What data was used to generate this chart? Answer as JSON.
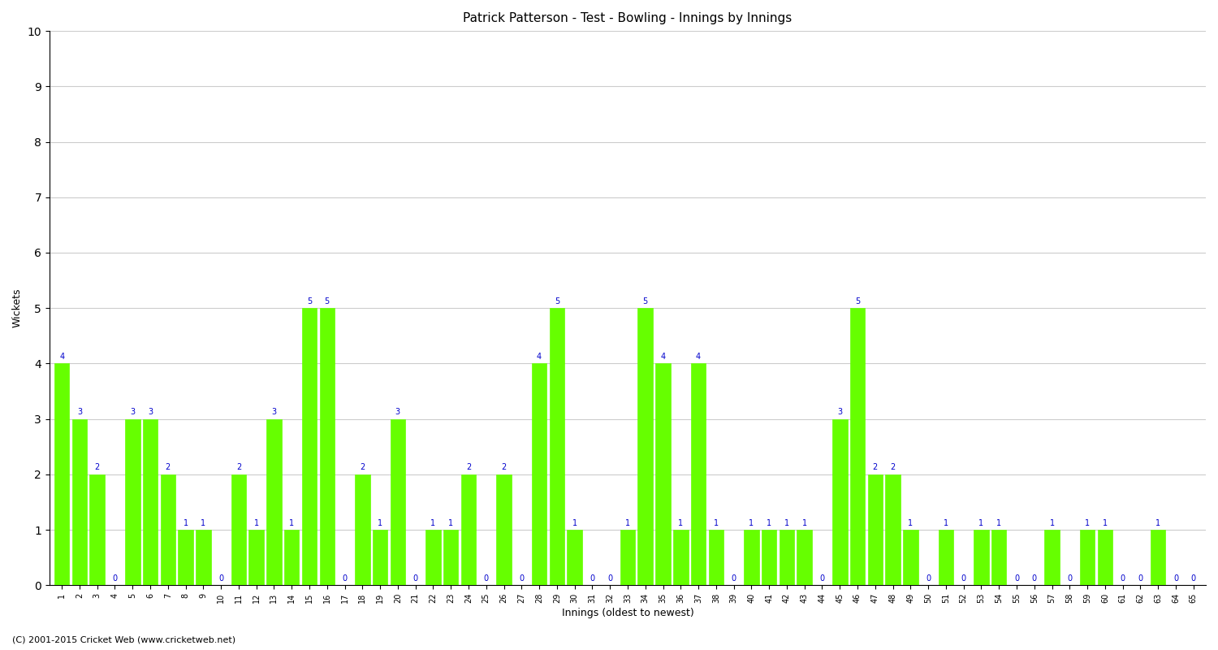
{
  "title": "Patrick Patterson - Test - Bowling - Innings by Innings",
  "xlabel": "Innings (oldest to newest)",
  "ylabel": "Wickets",
  "bar_color": "#66ff00",
  "bar_edge_color": "#66ff00",
  "label_color": "#0000cc",
  "background_color": "#ffffff",
  "grid_color": "#cccccc",
  "ylim": [
    0,
    10
  ],
  "yticks": [
    0,
    1,
    2,
    3,
    4,
    5,
    6,
    7,
    8,
    9,
    10
  ],
  "wickets": [
    4,
    3,
    2,
    0,
    3,
    3,
    2,
    1,
    1,
    0,
    2,
    1,
    3,
    1,
    5,
    5,
    0,
    2,
    1,
    3,
    0,
    1,
    1,
    2,
    0,
    2,
    0,
    4,
    5,
    1,
    0,
    0,
    1,
    5,
    4,
    1,
    4,
    1,
    0,
    1,
    1,
    1,
    1,
    0,
    3,
    5,
    2,
    2,
    1,
    0,
    1,
    0,
    1,
    1,
    0,
    0,
    1,
    0,
    1,
    1,
    0,
    0,
    1,
    0,
    0
  ],
  "x_labels": [
    "1",
    "2",
    "3",
    "4",
    "5",
    "6",
    "7",
    "8",
    "9",
    "10",
    "11",
    "12",
    "13",
    "14",
    "15",
    "16",
    "17",
    "18",
    "19",
    "20",
    "21",
    "22",
    "23",
    "24",
    "25",
    "26",
    "27",
    "28",
    "29",
    "30",
    "31",
    "32",
    "33",
    "34",
    "35",
    "36",
    "37",
    "38",
    "39",
    "40",
    "41",
    "42",
    "43",
    "44",
    "45",
    "46",
    "47",
    "48",
    "49",
    "50",
    "51",
    "52",
    "53",
    "54",
    "55",
    "56",
    "57",
    "58",
    "59",
    "60",
    "61",
    "62",
    "63",
    "64",
    "65"
  ],
  "footer": "(C) 2001-2015 Cricket Web (www.cricketweb.net)"
}
